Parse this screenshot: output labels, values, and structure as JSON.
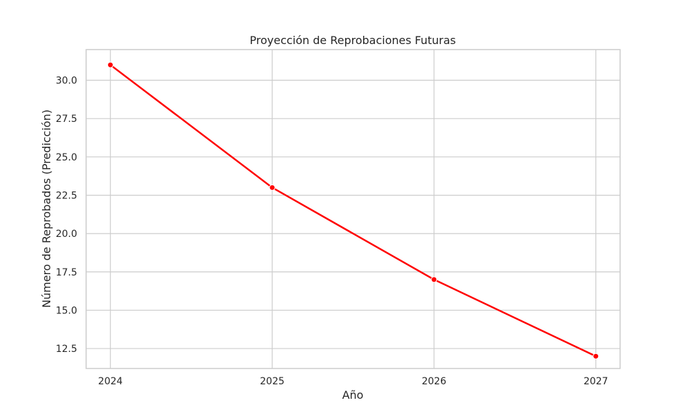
{
  "chart_data": {
    "type": "line",
    "title": "Proyección de Reprobaciones Futuras",
    "xlabel": "Año",
    "ylabel": "Número de Reprobados (Predicción)",
    "categories": [
      "2024",
      "2025",
      "2026",
      "2027"
    ],
    "x": [
      2024,
      2025,
      2026,
      2027
    ],
    "series": [
      {
        "values": [
          31,
          23,
          17,
          12
        ],
        "color": "#ff0000",
        "marker": "circle"
      }
    ],
    "xlim": [
      2023.85,
      2027.15
    ],
    "ylim": [
      11.2,
      32.0
    ],
    "yticks": [
      12.5,
      15.0,
      17.5,
      20.0,
      22.5,
      25.0,
      27.5,
      30.0
    ],
    "ytick_labels": [
      "12.5",
      "15.0",
      "17.5",
      "20.0",
      "22.5",
      "25.0",
      "27.5",
      "30.0"
    ],
    "grid": true,
    "grid_color": "#cccccc",
    "frame_color": "#cccccc",
    "text_color": "#262626"
  }
}
